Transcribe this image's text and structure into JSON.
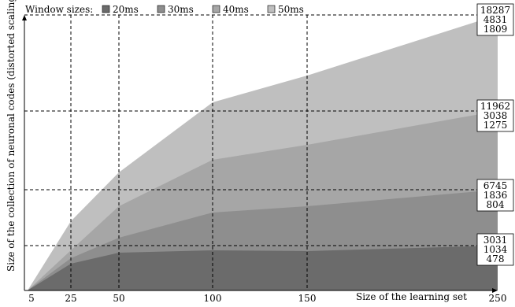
{
  "chart_data": {
    "type": "area",
    "title": "",
    "xlabel": "Size of the learning set",
    "ylabel": "Size of the collection of neuronal codes (distorted scaling)",
    "legend_title": "Window sizes:",
    "legend_position": "top-left",
    "x": [
      5,
      25,
      50,
      100,
      150,
      250
    ],
    "x_ticks": [
      "5",
      "25",
      "50",
      "100",
      "150",
      "250"
    ],
    "xlim": [
      5,
      250
    ],
    "grid": true,
    "scale_note": "distorted (non-linear) y scaling",
    "series": [
      {
        "name": "20ms",
        "color": "#6b6b6b",
        "values": [
          0,
          300,
          360,
          420,
          440,
          478
        ]
      },
      {
        "name": "30ms",
        "color": "#8e8e8e",
        "values": [
          0,
          530,
          660,
          780,
          850,
          1034
        ]
      },
      {
        "name": "40ms",
        "color": "#a6a6a6",
        "values": [
          0,
          760,
          1000,
          1220,
          1350,
          1836
        ]
      },
      {
        "name": "50ms",
        "color": "#bfbfbf",
        "values": [
          0,
          980,
          1290,
          1620,
          1800,
          1809
        ]
      }
    ],
    "end_labels": [
      {
        "group": "top",
        "values": [
          "18287",
          "4831",
          "1809"
        ]
      },
      {
        "group": "upper",
        "values": [
          "11962",
          "3038",
          "1275"
        ]
      },
      {
        "group": "middle",
        "values": [
          "6745",
          "1836",
          "804"
        ]
      },
      {
        "group": "lower",
        "values": [
          "3031",
          "1034",
          "478"
        ]
      }
    ]
  }
}
